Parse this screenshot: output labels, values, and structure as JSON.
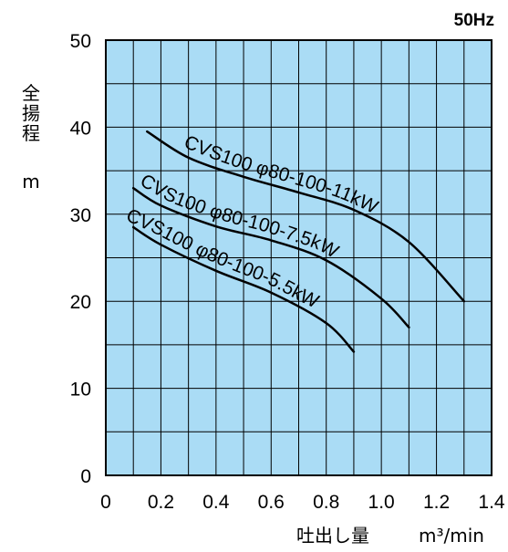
{
  "chart_data": {
    "type": "line",
    "frequency": "50Hz",
    "ylabel": "全揚程",
    "yunit": "m",
    "xlabel": "吐出し量",
    "xunit": "m³/min",
    "xlim": [
      0,
      1.4
    ],
    "ylim": [
      0,
      50
    ],
    "xticks": [
      "0",
      "0.2",
      "0.4",
      "0.6",
      "0.8",
      "1.0",
      "1.2",
      "1.4"
    ],
    "yticks": [
      "0",
      "10",
      "20",
      "30",
      "40",
      "50"
    ],
    "grid": true,
    "background_color": "#aadcf5",
    "series": [
      {
        "name": "CVS100 φ80-100-11kW",
        "x": [
          0.15,
          0.3,
          0.5,
          0.7,
          0.9,
          1.1,
          1.3
        ],
        "y": [
          39.5,
          36.5,
          34.3,
          32.5,
          30.5,
          26.8,
          20.0
        ]
      },
      {
        "name": "CVS100 φ80-100-7.5kW",
        "x": [
          0.1,
          0.2,
          0.4,
          0.6,
          0.8,
          1.0,
          1.1
        ],
        "y": [
          33.0,
          31.0,
          28.6,
          27.0,
          24.7,
          20.3,
          17.0
        ]
      },
      {
        "name": "CVS100 φ80-100-5.5kW",
        "x": [
          0.1,
          0.2,
          0.4,
          0.6,
          0.8,
          0.9
        ],
        "y": [
          28.5,
          26.5,
          23.5,
          21.0,
          17.5,
          14.2
        ]
      }
    ]
  }
}
